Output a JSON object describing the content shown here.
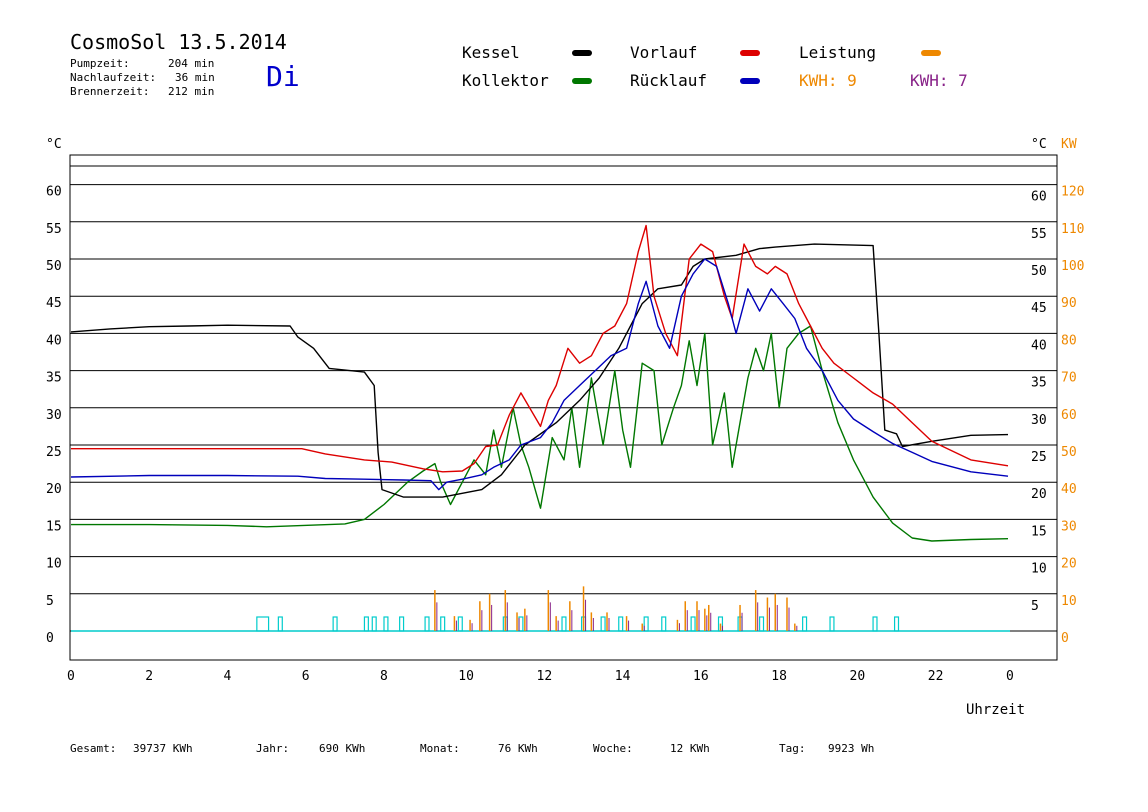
{
  "header": {
    "title": "CosmoSol 13.5.2014",
    "pump_label": "Pumpzeit:",
    "pump_value": "204 min",
    "follow_label": "Nachlaufzeit:",
    "follow_value": "36 min",
    "burner_label": "Brennerzeit:",
    "burner_value": "212 min",
    "weekday": "Di"
  },
  "legend": {
    "kessel": "Kessel",
    "kollektor": "Kollektor",
    "vorlauf": "Vorlauf",
    "ruecklauf": "Rücklauf",
    "leistung": "Leistung",
    "kwh1": "KWH: 9",
    "kwh2": "KWH: 7"
  },
  "footer": {
    "gesamt_label": "Gesamt:",
    "gesamt_value": "39737 KWh",
    "jahr_label": "Jahr:",
    "jahr_value": "690 KWh",
    "monat_label": "Monat:",
    "monat_value": "76 KWh",
    "woche_label": "Woche:",
    "woche_value": "12 KWh",
    "tag_label": "Tag:",
    "tag_value": "9923 Wh"
  },
  "chart_data": {
    "type": "line",
    "xlabel": "Uhrzeit",
    "ylabel_left": "°C",
    "ylabel_right": "°C",
    "ylabel_right2": "KW",
    "xlim": [
      0,
      24
    ],
    "ylim": [
      -5,
      62.5
    ],
    "x_ticks": [
      "0",
      "2",
      "4",
      "6",
      "8",
      "10",
      "12",
      "14",
      "16",
      "18",
      "20",
      "22",
      "0"
    ],
    "y_ticks_left": [
      0,
      5,
      10,
      15,
      20,
      25,
      30,
      35,
      40,
      45,
      50,
      55,
      60
    ],
    "y_ticks_right": [
      5,
      10,
      15,
      20,
      25,
      30,
      35,
      40,
      45,
      50,
      55,
      60
    ],
    "y_ticks_kw": [
      0,
      10,
      20,
      30,
      40,
      50,
      60,
      70,
      80,
      90,
      100,
      110,
      120
    ],
    "grid": true,
    "colors": {
      "kessel": "#000000",
      "kollektor": "#007700",
      "vorlauf": "#dd0000",
      "ruecklauf": "#0000bb",
      "leistung": "#ee8800",
      "kwh2": "#882288",
      "pump": "#00cccc"
    },
    "series": [
      {
        "name": "Kessel",
        "color": "#000000",
        "points": [
          [
            0,
            40.2
          ],
          [
            1,
            40.6
          ],
          [
            2,
            40.9
          ],
          [
            3,
            41
          ],
          [
            4,
            41.1
          ],
          [
            5.6,
            41
          ],
          [
            5.8,
            39.5
          ],
          [
            6.2,
            38
          ],
          [
            6.6,
            35.3
          ],
          [
            7.5,
            34.8
          ],
          [
            7.75,
            33
          ],
          [
            7.85,
            24
          ],
          [
            7.95,
            19
          ],
          [
            8.5,
            18
          ],
          [
            9.5,
            18
          ],
          [
            10.5,
            19
          ],
          [
            11,
            21
          ],
          [
            11.6,
            25
          ],
          [
            12.4,
            28
          ],
          [
            13,
            31
          ],
          [
            13.5,
            34
          ],
          [
            14,
            38
          ],
          [
            14.6,
            44
          ],
          [
            15,
            46
          ],
          [
            15.6,
            46.5
          ],
          [
            15.9,
            49
          ],
          [
            16.2,
            50
          ],
          [
            17,
            50.5
          ],
          [
            17.6,
            51.4
          ],
          [
            18,
            51.6
          ],
          [
            19,
            52
          ],
          [
            20.5,
            51.8
          ],
          [
            20.65,
            40
          ],
          [
            20.8,
            27
          ],
          [
            21.1,
            26.5
          ],
          [
            21.25,
            24.8
          ],
          [
            22,
            25.5
          ],
          [
            23,
            26.3
          ],
          [
            23.95,
            26.4
          ]
        ]
      },
      {
        "name": "Kollektor",
        "color": "#007700",
        "points": [
          [
            0,
            14.3
          ],
          [
            2,
            14.3
          ],
          [
            4,
            14.2
          ],
          [
            5,
            14
          ],
          [
            7,
            14.4
          ],
          [
            7.5,
            15
          ],
          [
            8,
            17
          ],
          [
            8.6,
            20
          ],
          [
            9,
            21.5
          ],
          [
            9.3,
            22.5
          ],
          [
            9.45,
            20
          ],
          [
            9.7,
            17
          ],
          [
            10,
            20
          ],
          [
            10.3,
            23
          ],
          [
            10.6,
            21
          ],
          [
            10.8,
            27
          ],
          [
            11,
            22
          ],
          [
            11.3,
            30
          ],
          [
            11.5,
            25
          ],
          [
            11.7,
            22
          ],
          [
            12,
            16.5
          ],
          [
            12.3,
            26
          ],
          [
            12.6,
            23
          ],
          [
            12.8,
            30
          ],
          [
            13,
            22
          ],
          [
            13.3,
            34
          ],
          [
            13.6,
            25
          ],
          [
            13.9,
            35
          ],
          [
            14.1,
            27
          ],
          [
            14.3,
            22
          ],
          [
            14.6,
            36
          ],
          [
            14.9,
            35
          ],
          [
            15.1,
            25
          ],
          [
            15.4,
            30
          ],
          [
            15.6,
            33
          ],
          [
            15.8,
            39
          ],
          [
            16,
            33
          ],
          [
            16.2,
            40
          ],
          [
            16.4,
            25
          ],
          [
            16.7,
            32
          ],
          [
            16.9,
            22
          ],
          [
            17.1,
            28
          ],
          [
            17.3,
            34
          ],
          [
            17.5,
            38
          ],
          [
            17.7,
            35
          ],
          [
            17.9,
            40
          ],
          [
            18.1,
            30
          ],
          [
            18.3,
            38
          ],
          [
            18.6,
            40
          ],
          [
            18.9,
            41
          ],
          [
            19.2,
            35
          ],
          [
            19.6,
            28
          ],
          [
            20,
            23
          ],
          [
            20.5,
            18
          ],
          [
            21,
            14.5
          ],
          [
            21.5,
            12.5
          ],
          [
            22,
            12.1
          ],
          [
            23,
            12.3
          ],
          [
            23.95,
            12.4
          ]
        ]
      },
      {
        "name": "Vorlauf",
        "color": "#dd0000",
        "points": [
          [
            0,
            24.5
          ],
          [
            2,
            24.5
          ],
          [
            4,
            24.5
          ],
          [
            5.9,
            24.5
          ],
          [
            6.5,
            23.8
          ],
          [
            7.5,
            23
          ],
          [
            8.2,
            22.7
          ],
          [
            9,
            21.8
          ],
          [
            9.5,
            21.4
          ],
          [
            10,
            21.5
          ],
          [
            10.3,
            22.5
          ],
          [
            10.6,
            24.8
          ],
          [
            10.9,
            25
          ],
          [
            11.2,
            29
          ],
          [
            11.5,
            32
          ],
          [
            12,
            27.5
          ],
          [
            12.2,
            31
          ],
          [
            12.4,
            33
          ],
          [
            12.7,
            38
          ],
          [
            13,
            36
          ],
          [
            13.3,
            37
          ],
          [
            13.6,
            40
          ],
          [
            13.9,
            41
          ],
          [
            14.2,
            44
          ],
          [
            14.5,
            51
          ],
          [
            14.7,
            54.5
          ],
          [
            14.9,
            45
          ],
          [
            15.2,
            40
          ],
          [
            15.5,
            37
          ],
          [
            15.8,
            50
          ],
          [
            16.1,
            52
          ],
          [
            16.4,
            51
          ],
          [
            16.7,
            45
          ],
          [
            16.9,
            42
          ],
          [
            17.2,
            52
          ],
          [
            17.5,
            49
          ],
          [
            17.8,
            48
          ],
          [
            18,
            49
          ],
          [
            18.3,
            48
          ],
          [
            18.6,
            44
          ],
          [
            18.9,
            41
          ],
          [
            19.2,
            38
          ],
          [
            19.5,
            36
          ],
          [
            20,
            34
          ],
          [
            20.5,
            32
          ],
          [
            21,
            30.5
          ],
          [
            21.5,
            28
          ],
          [
            22,
            25.5
          ],
          [
            23,
            23
          ],
          [
            23.95,
            22.2
          ]
        ]
      },
      {
        "name": "Rücklauf",
        "color": "#0000bb",
        "points": [
          [
            0,
            20.7
          ],
          [
            2,
            20.9
          ],
          [
            4,
            20.9
          ],
          [
            5.8,
            20.8
          ],
          [
            6.5,
            20.5
          ],
          [
            7.5,
            20.4
          ],
          [
            8.5,
            20.3
          ],
          [
            9.2,
            20.2
          ],
          [
            9.4,
            19
          ],
          [
            9.6,
            20
          ],
          [
            10,
            20.4
          ],
          [
            10.5,
            21
          ],
          [
            10.8,
            22
          ],
          [
            11.2,
            23
          ],
          [
            11.5,
            25
          ],
          [
            12,
            26
          ],
          [
            12.3,
            28
          ],
          [
            12.6,
            31
          ],
          [
            13,
            33
          ],
          [
            13.4,
            35
          ],
          [
            13.8,
            37
          ],
          [
            14.2,
            38
          ],
          [
            14.5,
            44
          ],
          [
            14.7,
            47
          ],
          [
            15,
            41
          ],
          [
            15.3,
            38
          ],
          [
            15.6,
            45
          ],
          [
            15.9,
            48
          ],
          [
            16.2,
            50
          ],
          [
            16.5,
            49
          ],
          [
            16.8,
            44
          ],
          [
            17,
            40
          ],
          [
            17.3,
            46
          ],
          [
            17.6,
            43
          ],
          [
            17.9,
            46
          ],
          [
            18.2,
            44
          ],
          [
            18.5,
            42
          ],
          [
            18.8,
            38
          ],
          [
            19.2,
            35
          ],
          [
            19.6,
            31
          ],
          [
            20,
            28.5
          ],
          [
            20.5,
            26.8
          ],
          [
            21,
            25.2
          ],
          [
            21.5,
            24
          ],
          [
            22,
            22.8
          ],
          [
            23,
            21.4
          ],
          [
            23.95,
            20.8
          ]
        ]
      }
    ],
    "leistung_spikes_kw": [
      [
        9.3,
        11
      ],
      [
        9.8,
        4
      ],
      [
        10.2,
        3
      ],
      [
        10.45,
        8
      ],
      [
        10.7,
        10
      ],
      [
        11.1,
        11
      ],
      [
        11.4,
        5
      ],
      [
        11.6,
        6
      ],
      [
        12.2,
        11
      ],
      [
        12.4,
        4
      ],
      [
        12.75,
        8
      ],
      [
        13.1,
        12
      ],
      [
        13.3,
        5
      ],
      [
        13.7,
        5
      ],
      [
        14.2,
        4
      ],
      [
        14.6,
        2
      ],
      [
        15.5,
        3
      ],
      [
        15.7,
        8
      ],
      [
        16,
        8
      ],
      [
        16.2,
        6
      ],
      [
        16.3,
        7
      ],
      [
        16.6,
        2
      ],
      [
        17.1,
        7
      ],
      [
        17.5,
        11
      ],
      [
        17.8,
        9
      ],
      [
        18,
        10
      ],
      [
        18.3,
        9
      ],
      [
        18.5,
        2
      ]
    ],
    "pump_pulses": [
      [
        4.75,
        5.05
      ],
      [
        5.3,
        5.4
      ],
      [
        6.7,
        6.8
      ],
      [
        7.5,
        7.6
      ],
      [
        7.7,
        7.8
      ],
      [
        8.0,
        8.1
      ],
      [
        8.4,
        8.5
      ],
      [
        9.05,
        9.15
      ],
      [
        9.45,
        9.55
      ],
      [
        9.9,
        10.0
      ],
      [
        11.05,
        11.15
      ],
      [
        11.45,
        11.55
      ],
      [
        12.55,
        12.65
      ],
      [
        13.05,
        13.15
      ],
      [
        13.55,
        13.65
      ],
      [
        14.0,
        14.1
      ],
      [
        14.65,
        14.75
      ],
      [
        15.1,
        15.2
      ],
      [
        15.85,
        15.95
      ],
      [
        16.55,
        16.65
      ],
      [
        17.05,
        17.15
      ],
      [
        17.6,
        17.7
      ],
      [
        18.7,
        18.8
      ],
      [
        19.4,
        19.5
      ],
      [
        20.5,
        20.6
      ],
      [
        21.05,
        21.15
      ]
    ]
  }
}
